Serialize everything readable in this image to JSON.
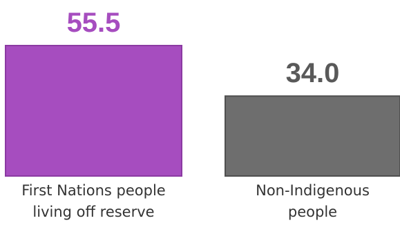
{
  "chart_data": {
    "type": "bar",
    "categories": [
      [
        "First Nations people",
        "living off reserve"
      ],
      [
        "Non-Indigenous",
        "people"
      ]
    ],
    "values": [
      55.5,
      34.0
    ],
    "value_labels": [
      "55.5",
      "34.0"
    ],
    "colors": {
      "bars": [
        "#a64dbf",
        "#6e6e6e"
      ],
      "bar_borders": [
        "#8b3aa2",
        "#4f4f4f"
      ],
      "value_labels": [
        "#a64dbf",
        "#595959"
      ]
    },
    "title": "",
    "xlabel": "",
    "ylabel": "",
    "ylim": [
      0,
      55.5
    ],
    "grid": false,
    "legend": "none"
  }
}
